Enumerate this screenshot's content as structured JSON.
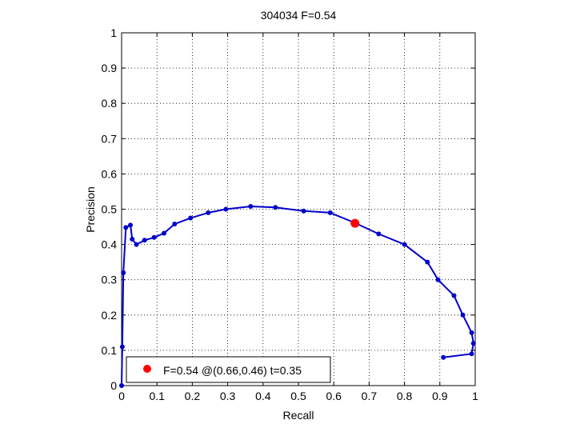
{
  "chart_data": {
    "type": "line",
    "title": "304034 F=0.54",
    "xlabel": "Recall",
    "ylabel": "Precision",
    "xlim": [
      0,
      1
    ],
    "ylim": [
      0,
      1
    ],
    "grid": true,
    "xticks": [
      "0",
      "0.1",
      "0.2",
      "0.3",
      "0.4",
      "0.5",
      "0.6",
      "0.7",
      "0.8",
      "0.9",
      "1"
    ],
    "yticks": [
      "0",
      "0.1",
      "0.2",
      "0.3",
      "0.4",
      "0.5",
      "0.6",
      "0.7",
      "0.8",
      "0.9",
      "1"
    ],
    "series": [
      {
        "color": "#0000cc",
        "points": [
          [
            0.91,
            0.08
          ],
          [
            0.99,
            0.09
          ],
          [
            0.995,
            0.12
          ],
          [
            0.99,
            0.15
          ],
          [
            0.965,
            0.2
          ],
          [
            0.94,
            0.255
          ],
          [
            0.895,
            0.3
          ],
          [
            0.865,
            0.35
          ],
          [
            0.8,
            0.4
          ],
          [
            0.727,
            0.43
          ],
          [
            0.658,
            0.462
          ],
          [
            0.59,
            0.49
          ],
          [
            0.515,
            0.495
          ],
          [
            0.435,
            0.505
          ],
          [
            0.365,
            0.508
          ],
          [
            0.295,
            0.5
          ],
          [
            0.245,
            0.49
          ],
          [
            0.195,
            0.475
          ],
          [
            0.15,
            0.458
          ],
          [
            0.12,
            0.432
          ],
          [
            0.092,
            0.42
          ],
          [
            0.065,
            0.412
          ],
          [
            0.042,
            0.4
          ],
          [
            0.03,
            0.415
          ],
          [
            0.025,
            0.455
          ],
          [
            0.012,
            0.448
          ],
          [
            0.005,
            0.32
          ],
          [
            0.002,
            0.11
          ],
          [
            0.0,
            0.0
          ]
        ]
      }
    ],
    "highlight": {
      "x": 0.66,
      "y": 0.46,
      "color": "#ff0000",
      "label": "F=0.54 @(0.66,0.46) t=0.35"
    },
    "legend_position": "bottom-left"
  }
}
